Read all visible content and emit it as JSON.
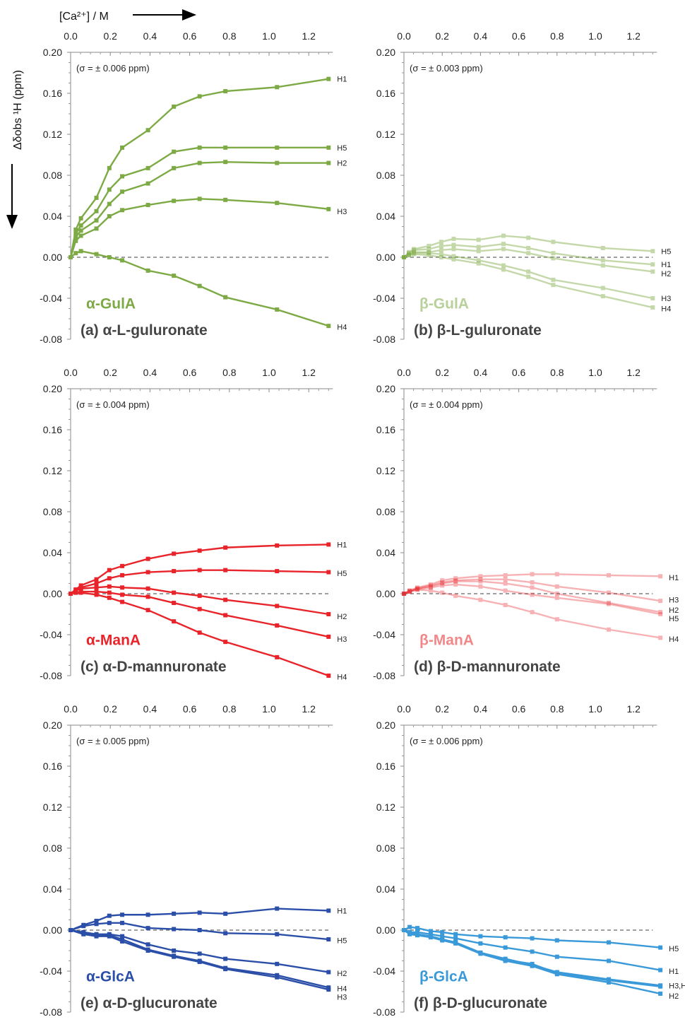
{
  "figure": {
    "x_axis_title": "[Ca²⁺] / M",
    "y_axis_title": "Δδobs ¹H (ppm)"
  },
  "chart_data": [
    {
      "type": "line",
      "panel": "a",
      "species": "α-GulA",
      "caption": "(a) α-L-guluronate",
      "sigma": "(σ = ± 0.006 ppm)",
      "color": "#7daa45",
      "opacity": 1,
      "xlim": [
        0,
        1.3
      ],
      "ylim": [
        -0.08,
        0.2
      ],
      "xticks": [
        "0.0",
        "0.2",
        "0.4",
        "0.6",
        "0.8",
        "1.0",
        "1.2"
      ],
      "yticks": [
        "0.20",
        "0.16",
        "0.12",
        "0.08",
        "0.04",
        "0.00",
        "-0.04",
        "-0.08"
      ],
      "x": [
        0,
        0.026,
        0.052,
        0.13,
        0.195,
        0.26,
        0.39,
        0.52,
        0.65,
        0.78,
        1.04,
        1.3
      ],
      "series": [
        {
          "name": "H1",
          "values": [
            0,
            0.027,
            0.038,
            0.058,
            0.087,
            0.107,
            0.124,
            0.147,
            0.157,
            0.162,
            0.166,
            0.174
          ]
        },
        {
          "name": "H5",
          "values": [
            0,
            0.023,
            0.031,
            0.045,
            0.066,
            0.079,
            0.087,
            0.103,
            0.107,
            0.107,
            0.107,
            0.107
          ]
        },
        {
          "name": "H2",
          "values": [
            0,
            0.02,
            0.026,
            0.036,
            0.052,
            0.064,
            0.072,
            0.087,
            0.092,
            0.093,
            0.092,
            0.092
          ]
        },
        {
          "name": "H3",
          "values": [
            0,
            0.016,
            0.021,
            0.028,
            0.04,
            0.046,
            0.051,
            0.055,
            0.057,
            0.056,
            0.053,
            0.047
          ]
        },
        {
          "name": "H4",
          "values": [
            0,
            0.004,
            0.006,
            0.003,
            0.0,
            -0.003,
            -0.013,
            -0.018,
            -0.028,
            -0.039,
            -0.051,
            -0.067
          ]
        }
      ],
      "label_positions": {
        "H1": 0.174,
        "H5": 0.107,
        "H2": 0.092,
        "H3": 0.045,
        "H4": -0.068
      }
    },
    {
      "type": "line",
      "panel": "b",
      "species": "β-GulA",
      "caption": "(b) β-L-guluronate",
      "sigma": "(σ = ± 0.003 ppm)",
      "color": "#7daa45",
      "opacity": 0.45,
      "xlim": [
        0,
        1.3
      ],
      "ylim": [
        -0.08,
        0.2
      ],
      "xticks": [
        "0.0",
        "0.2",
        "0.4",
        "0.6",
        "0.8",
        "1.0",
        "1.2"
      ],
      "yticks": [
        "0.20",
        "0.16",
        "0.12",
        "0.08",
        "0.04",
        "0.00",
        "-0.04",
        "-0.08"
      ],
      "x": [
        0,
        0.026,
        0.052,
        0.13,
        0.195,
        0.26,
        0.39,
        0.52,
        0.65,
        0.78,
        1.04,
        1.3
      ],
      "series": [
        {
          "name": "H5",
          "values": [
            0,
            0.005,
            0.008,
            0.011,
            0.015,
            0.018,
            0.017,
            0.021,
            0.019,
            0.015,
            0.009,
            0.006
          ]
        },
        {
          "name": "H1",
          "values": [
            0,
            0.004,
            0.007,
            0.008,
            0.011,
            0.012,
            0.01,
            0.013,
            0.009,
            0.004,
            -0.003,
            -0.007
          ]
        },
        {
          "name": "H2",
          "values": [
            0,
            0.003,
            0.005,
            0.005,
            0.007,
            0.008,
            0.006,
            0.008,
            0.004,
            -0.001,
            -0.008,
            -0.014
          ]
        },
        {
          "name": "H3",
          "values": [
            0,
            0.002,
            0.004,
            0.004,
            0.003,
            0.001,
            -0.003,
            -0.008,
            -0.014,
            -0.022,
            -0.03,
            -0.04
          ]
        },
        {
          "name": "H4",
          "values": [
            0,
            0.002,
            0.003,
            0.002,
            0.0,
            -0.002,
            -0.006,
            -0.012,
            -0.019,
            -0.027,
            -0.038,
            -0.049
          ]
        }
      ],
      "label_positions": {
        "H5": 0.006,
        "H1": -0.007,
        "H2": -0.016,
        "H3": -0.04,
        "H4": -0.05
      }
    },
    {
      "type": "line",
      "panel": "c",
      "species": "α-ManA",
      "caption": "(c) α-D-mannuronate",
      "sigma": "(σ = ± 0.004 ppm)",
      "color": "#e8242a",
      "opacity": 1,
      "xlim": [
        0,
        1.3
      ],
      "ylim": [
        -0.08,
        0.2
      ],
      "xticks": [
        "0.0",
        "0.2",
        "0.4",
        "0.6",
        "0.8",
        "1.0",
        "1.2"
      ],
      "yticks": [
        "0.20",
        "0.16",
        "0.12",
        "0.08",
        "0.04",
        "0.00",
        "-0.04",
        "-0.08"
      ],
      "x": [
        0,
        0.026,
        0.052,
        0.13,
        0.195,
        0.26,
        0.39,
        0.52,
        0.65,
        0.78,
        1.04,
        1.3
      ],
      "series": [
        {
          "name": "H1",
          "values": [
            0,
            0.004,
            0.008,
            0.014,
            0.023,
            0.027,
            0.034,
            0.039,
            0.042,
            0.045,
            0.047,
            0.048
          ]
        },
        {
          "name": "H5",
          "values": [
            0,
            0.004,
            0.006,
            0.01,
            0.015,
            0.018,
            0.021,
            0.022,
            0.023,
            0.023,
            0.022,
            0.021
          ]
        },
        {
          "name": "H2",
          "values": [
            0,
            0.003,
            0.005,
            0.006,
            0.007,
            0.006,
            0.005,
            0.001,
            -0.002,
            -0.006,
            -0.012,
            -0.02
          ]
        },
        {
          "name": "H3",
          "values": [
            0,
            0.001,
            0.002,
            0.002,
            0.001,
            -0.001,
            -0.003,
            -0.009,
            -0.015,
            -0.021,
            -0.031,
            -0.042
          ]
        },
        {
          "name": "H4",
          "values": [
            0,
            0.001,
            0.001,
            -0.001,
            -0.004,
            -0.008,
            -0.016,
            -0.027,
            -0.038,
            -0.047,
            -0.062,
            -0.08
          ]
        }
      ],
      "label_positions": {
        "H1": 0.048,
        "H5": 0.02,
        "H2": -0.022,
        "H3": -0.044,
        "H4": -0.081
      }
    },
    {
      "type": "line",
      "panel": "d",
      "species": "β-ManA",
      "caption": "(d) β-D-mannuronate",
      "sigma": "(σ = ± 0.004 ppm)",
      "color": "#e8242a",
      "opacity": 0.35,
      "xlim": [
        0,
        1.3
      ],
      "ylim": [
        -0.08,
        0.2
      ],
      "xticks": [
        "0.0",
        "0.2",
        "0.4",
        "0.6",
        "0.8",
        "1.0",
        "1.2"
      ],
      "yticks": [
        "0.20",
        "0.16",
        "0.12",
        "0.08",
        "0.04",
        "0.00",
        "-0.04",
        "-0.08"
      ],
      "x": [
        0,
        0.03,
        0.07,
        0.14,
        0.2,
        0.27,
        0.4,
        0.53,
        0.67,
        0.8,
        1.07,
        1.34
      ],
      "series": [
        {
          "name": "H1",
          "values": [
            0,
            0.003,
            0.006,
            0.009,
            0.013,
            0.015,
            0.017,
            0.018,
            0.019,
            0.019,
            0.018,
            0.017
          ]
        },
        {
          "name": "H3",
          "values": [
            0,
            0.003,
            0.005,
            0.008,
            0.011,
            0.013,
            0.014,
            0.014,
            0.011,
            0.007,
            0.001,
            -0.007
          ]
        },
        {
          "name": "H2",
          "values": [
            0,
            0.002,
            0.005,
            0.007,
            0.01,
            0.012,
            0.012,
            0.01,
            0.006,
            0.0,
            -0.009,
            -0.018
          ]
        },
        {
          "name": "H5",
          "values": [
            0,
            0.002,
            0.004,
            0.006,
            0.008,
            0.009,
            0.007,
            0.003,
            -0.001,
            -0.004,
            -0.01,
            -0.02
          ]
        },
        {
          "name": "H4",
          "values": [
            0,
            0.002,
            0.004,
            0.003,
            0.001,
            -0.002,
            -0.006,
            -0.011,
            -0.018,
            -0.025,
            -0.035,
            -0.043
          ]
        }
      ],
      "label_positions": {
        "H1": 0.016,
        "H3": -0.006,
        "H2": -0.016,
        "H5": -0.024,
        "H4": -0.044
      }
    },
    {
      "type": "line",
      "panel": "e",
      "species": "α-GlcA",
      "caption": "(e) α-D-glucuronate",
      "sigma": "(σ = ± 0.005 ppm)",
      "color": "#2b4fa8",
      "opacity": 1,
      "xlim": [
        0,
        1.3
      ],
      "ylim": [
        -0.08,
        0.2
      ],
      "xticks": [
        "0.0",
        "0.2",
        "0.4",
        "0.6",
        "0.8",
        "1.0",
        "1.2"
      ],
      "yticks": [
        "0.20",
        "0.16",
        "0.12",
        "0.08",
        "0.04",
        "0.00",
        "-0.04",
        "-0.08"
      ],
      "x": [
        0,
        0.065,
        0.13,
        0.195,
        0.26,
        0.39,
        0.52,
        0.65,
        0.78,
        1.04,
        1.3
      ],
      "series": [
        {
          "name": "H1",
          "values": [
            0,
            0.005,
            0.009,
            0.014,
            0.015,
            0.015,
            0.016,
            0.017,
            0.016,
            0.021,
            0.019
          ]
        },
        {
          "name": "H5",
          "values": [
            0,
            0.004,
            0.006,
            0.007,
            0.007,
            0.002,
            0.001,
            0.0,
            -0.003,
            -0.004,
            -0.009
          ]
        },
        {
          "name": "H2",
          "values": [
            0,
            -0.002,
            -0.004,
            -0.004,
            -0.006,
            -0.014,
            -0.02,
            -0.023,
            -0.028,
            -0.033,
            -0.041
          ]
        },
        {
          "name": "H4",
          "values": [
            0,
            -0.003,
            -0.005,
            -0.005,
            -0.009,
            -0.019,
            -0.025,
            -0.03,
            -0.037,
            -0.044,
            -0.056
          ]
        },
        {
          "name": "H3",
          "values": [
            0,
            -0.004,
            -0.006,
            -0.006,
            -0.011,
            -0.02,
            -0.026,
            -0.031,
            -0.038,
            -0.046,
            -0.058
          ]
        }
      ],
      "label_positions": {
        "H1": 0.019,
        "H5": -0.01,
        "H2": -0.042,
        "H4": -0.057,
        "H3": -0.065
      }
    },
    {
      "type": "line",
      "panel": "f",
      "species": "β-GlcA",
      "caption": "(f) β-D-glucuronate",
      "sigma": "(σ = ± 0.006 ppm)",
      "color": "#3a9ad9",
      "opacity": 1,
      "xlim": [
        0,
        1.3
      ],
      "ylim": [
        -0.08,
        0.2
      ],
      "xticks": [
        "0.0",
        "0.2",
        "0.4",
        "0.6",
        "0.8",
        "1.0",
        "1.2"
      ],
      "yticks": [
        "0.20",
        "0.16",
        "0.12",
        "0.08",
        "0.04",
        "0.00",
        "-0.04",
        "-0.08"
      ],
      "x": [
        0,
        0.03,
        0.07,
        0.14,
        0.2,
        0.27,
        0.4,
        0.53,
        0.67,
        0.8,
        1.07,
        1.34
      ],
      "series": [
        {
          "name": "H5",
          "values": [
            0,
            0.003,
            0.002,
            -0.001,
            -0.002,
            -0.004,
            -0.006,
            -0.007,
            -0.008,
            -0.01,
            -0.012,
            -0.017
          ]
        },
        {
          "name": "H1",
          "values": [
            0,
            -0.002,
            -0.002,
            -0.004,
            -0.006,
            -0.008,
            -0.013,
            -0.017,
            -0.021,
            -0.026,
            -0.03,
            -0.039
          ]
        },
        {
          "name": "H3,H4",
          "values": [
            0,
            -0.003,
            -0.004,
            -0.006,
            -0.009,
            -0.012,
            -0.022,
            -0.028,
            -0.034,
            -0.041,
            -0.048,
            -0.054
          ]
        },
        {
          "name": "",
          "values": [
            0,
            -0.003,
            -0.004,
            -0.006,
            -0.009,
            -0.012,
            -0.022,
            -0.029,
            -0.033,
            -0.042,
            -0.049,
            -0.055
          ]
        },
        {
          "name": "H2",
          "values": [
            0,
            -0.004,
            -0.005,
            -0.007,
            -0.01,
            -0.013,
            -0.023,
            -0.03,
            -0.035,
            -0.043,
            -0.051,
            -0.062
          ]
        }
      ],
      "label_positions": {
        "H5": -0.018,
        "H1": -0.04,
        "H3,H4": -0.054,
        "H2": -0.064
      }
    }
  ]
}
